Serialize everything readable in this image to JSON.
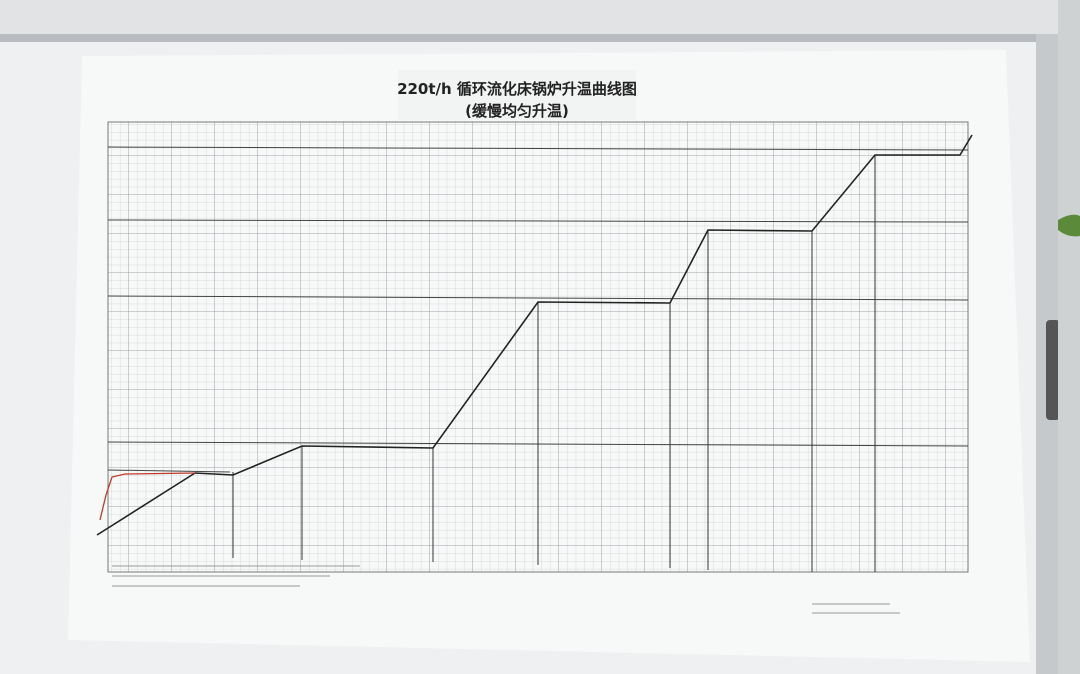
{
  "header": {
    "title": "220t/h 循环流化床锅炉升温曲线图",
    "subtitle": "(缓慢均匀升温)"
  }
}
